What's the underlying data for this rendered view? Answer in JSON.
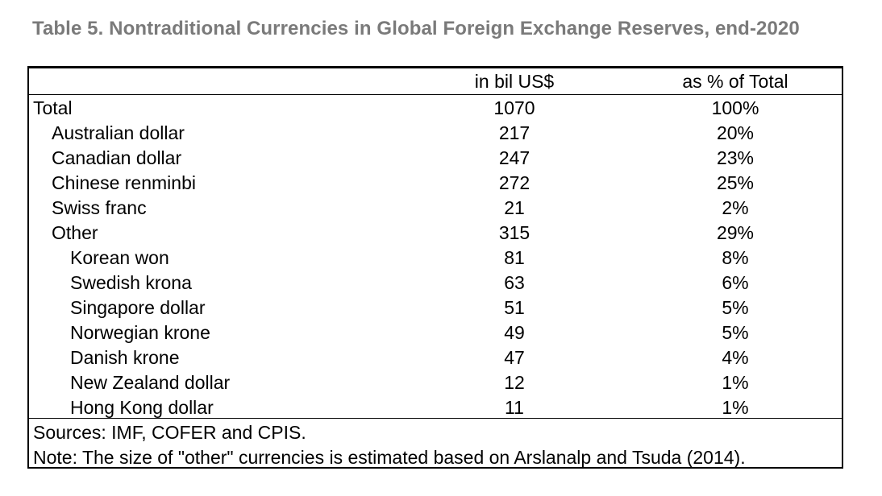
{
  "title": "Table 5. Nontraditional Currencies in Global Foreign Exchange Reserves, end-2020",
  "table": {
    "columns": [
      "",
      "in bil US$",
      "as % of Total"
    ],
    "rows": [
      {
        "label": "Total",
        "value": "1070",
        "pct": "100%",
        "indent": 0
      },
      {
        "label": "Australian dollar",
        "value": "217",
        "pct": "20%",
        "indent": 1
      },
      {
        "label": "Canadian dollar",
        "value": "247",
        "pct": "23%",
        "indent": 1
      },
      {
        "label": "Chinese renminbi",
        "value": "272",
        "pct": "25%",
        "indent": 1
      },
      {
        "label": "Swiss franc",
        "value": "21",
        "pct": "2%",
        "indent": 1
      },
      {
        "label": "Other",
        "value": "315",
        "pct": "29%",
        "indent": 1
      },
      {
        "label": "Korean won",
        "value": "81",
        "pct": "8%",
        "indent": 2
      },
      {
        "label": "Swedish krona",
        "value": "63",
        "pct": "6%",
        "indent": 2
      },
      {
        "label": "Singapore dollar",
        "value": "51",
        "pct": "5%",
        "indent": 2
      },
      {
        "label": "Norwegian krone",
        "value": "49",
        "pct": "5%",
        "indent": 2
      },
      {
        "label": "Danish krone",
        "value": "47",
        "pct": "4%",
        "indent": 2
      },
      {
        "label": "New Zealand dollar",
        "value": "12",
        "pct": "1%",
        "indent": 2
      },
      {
        "label": "Hong Kong dollar",
        "value": "11",
        "pct": "1%",
        "indent": 2
      }
    ]
  },
  "sources": "Sources: IMF, COFER and CPIS.",
  "note": "Note: The size of \"other\" currencies is estimated based on Arslanalp and Tsuda (2014)."
}
